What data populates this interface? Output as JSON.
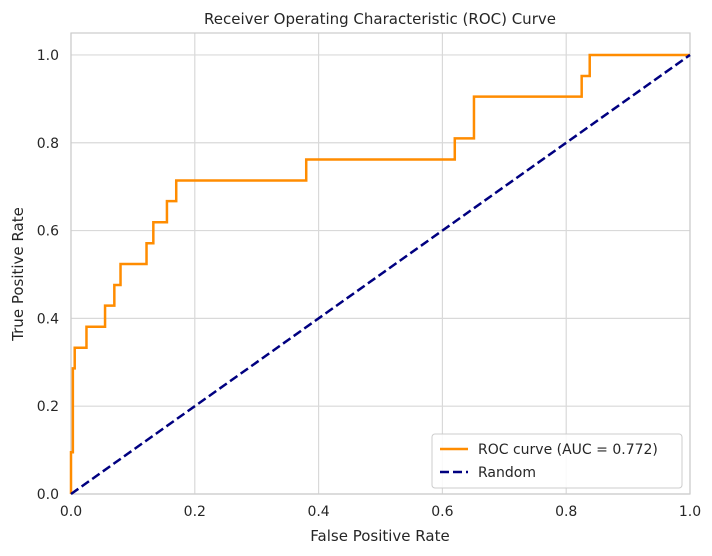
{
  "chart_data": {
    "type": "line",
    "title": "Receiver Operating Characteristic (ROC) Curve",
    "xlabel": "False Positive Rate",
    "ylabel": "True Positive Rate",
    "xlim": [
      0.0,
      1.0
    ],
    "ylim": [
      0.0,
      1.05
    ],
    "xticks": [
      0.0,
      0.2,
      0.4,
      0.6,
      0.8,
      1.0
    ],
    "yticks": [
      0.0,
      0.2,
      0.4,
      0.6,
      0.8,
      1.0
    ],
    "xtick_labels": [
      "0.0",
      "0.2",
      "0.4",
      "0.6",
      "0.8",
      "1.0"
    ],
    "ytick_labels": [
      "0.0",
      "0.2",
      "0.4",
      "0.6",
      "0.8",
      "1.0"
    ],
    "grid": true,
    "legend_position": "bottom-right",
    "series": [
      {
        "name": "ROC curve (AUC = 0.772)",
        "color": "#ff8c00",
        "style": "solid",
        "x": [
          0.0,
          0.0,
          0.003,
          0.003,
          0.006,
          0.006,
          0.025,
          0.025,
          0.055,
          0.055,
          0.07,
          0.07,
          0.08,
          0.08,
          0.122,
          0.122,
          0.133,
          0.133,
          0.155,
          0.155,
          0.17,
          0.17,
          0.38,
          0.38,
          0.62,
          0.62,
          0.651,
          0.651,
          0.825,
          0.825,
          0.838,
          0.838,
          1.0
        ],
        "y": [
          0.0,
          0.095,
          0.095,
          0.286,
          0.286,
          0.333,
          0.333,
          0.381,
          0.381,
          0.429,
          0.429,
          0.476,
          0.476,
          0.524,
          0.524,
          0.571,
          0.571,
          0.619,
          0.619,
          0.667,
          0.667,
          0.714,
          0.714,
          0.762,
          0.762,
          0.81,
          0.81,
          0.905,
          0.905,
          0.952,
          0.952,
          1.0,
          1.0
        ]
      },
      {
        "name": "Random",
        "color": "#000080",
        "style": "dashed",
        "x": [
          0.0,
          1.0
        ],
        "y": [
          0.0,
          1.0
        ]
      }
    ]
  }
}
